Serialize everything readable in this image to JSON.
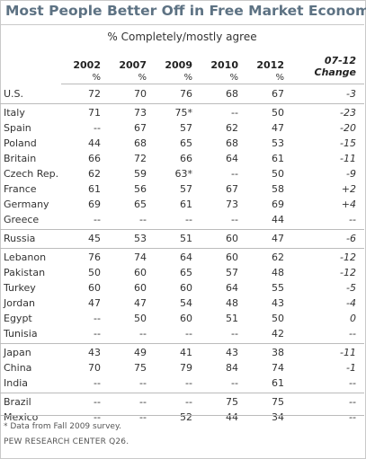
{
  "title": "Most People Better Off in Free Market Economy",
  "subtitle": "% Completely/mostly agree",
  "footnote": "* Data from Fall 2009 survey.",
  "source": "PEW RESEARCH CENTER Q26.",
  "chart_data": {
    "type": "table",
    "columns": [
      "2002",
      "2007",
      "2009",
      "2010",
      "2012"
    ],
    "unit_row": [
      "%",
      "%",
      "%",
      "%",
      "%"
    ],
    "change_header": [
      "07-12",
      "Change"
    ],
    "groups": [
      [
        {
          "country": "U.S.",
          "values": [
            "72",
            "70",
            "76",
            "68",
            "67"
          ],
          "change": "-3"
        }
      ],
      [
        {
          "country": "Italy",
          "values": [
            "71",
            "73",
            "75*",
            "--",
            "50"
          ],
          "change": "-23"
        },
        {
          "country": "Spain",
          "values": [
            "--",
            "67",
            "57",
            "62",
            "47"
          ],
          "change": "-20"
        },
        {
          "country": "Poland",
          "values": [
            "44",
            "68",
            "65",
            "68",
            "53"
          ],
          "change": "-15"
        },
        {
          "country": "Britain",
          "values": [
            "66",
            "72",
            "66",
            "64",
            "61"
          ],
          "change": "-11"
        },
        {
          "country": "Czech Rep.",
          "values": [
            "62",
            "59",
            "63*",
            "--",
            "50"
          ],
          "change": "-9"
        },
        {
          "country": "France",
          "values": [
            "61",
            "56",
            "57",
            "67",
            "58"
          ],
          "change": "+2"
        },
        {
          "country": "Germany",
          "values": [
            "69",
            "65",
            "61",
            "73",
            "69"
          ],
          "change": "+4"
        },
        {
          "country": "Greece",
          "values": [
            "--",
            "--",
            "--",
            "--",
            "44"
          ],
          "change": "--"
        }
      ],
      [
        {
          "country": "Russia",
          "values": [
            "45",
            "53",
            "51",
            "60",
            "47"
          ],
          "change": "-6"
        }
      ],
      [
        {
          "country": "Lebanon",
          "values": [
            "76",
            "74",
            "64",
            "60",
            "62"
          ],
          "change": "-12"
        },
        {
          "country": "Pakistan",
          "values": [
            "50",
            "60",
            "65",
            "57",
            "48"
          ],
          "change": "-12"
        },
        {
          "country": "Turkey",
          "values": [
            "60",
            "60",
            "60",
            "64",
            "55"
          ],
          "change": "-5"
        },
        {
          "country": "Jordan",
          "values": [
            "47",
            "47",
            "54",
            "48",
            "43"
          ],
          "change": "-4"
        },
        {
          "country": "Egypt",
          "values": [
            "--",
            "50",
            "60",
            "51",
            "50"
          ],
          "change": "0"
        },
        {
          "country": "Tunisia",
          "values": [
            "--",
            "--",
            "--",
            "--",
            "42"
          ],
          "change": "--"
        }
      ],
      [
        {
          "country": "Japan",
          "values": [
            "43",
            "49",
            "41",
            "43",
            "38"
          ],
          "change": "-11"
        },
        {
          "country": "China",
          "values": [
            "70",
            "75",
            "79",
            "84",
            "74"
          ],
          "change": "-1"
        },
        {
          "country": "India",
          "values": [
            "--",
            "--",
            "--",
            "--",
            "61"
          ],
          "change": "--"
        }
      ],
      [
        {
          "country": "Brazil",
          "values": [
            "--",
            "--",
            "--",
            "75",
            "75"
          ],
          "change": "--"
        },
        {
          "country": "Mexico",
          "values": [
            "--",
            "--",
            "52",
            "44",
            "34"
          ],
          "change": "--"
        }
      ]
    ]
  }
}
